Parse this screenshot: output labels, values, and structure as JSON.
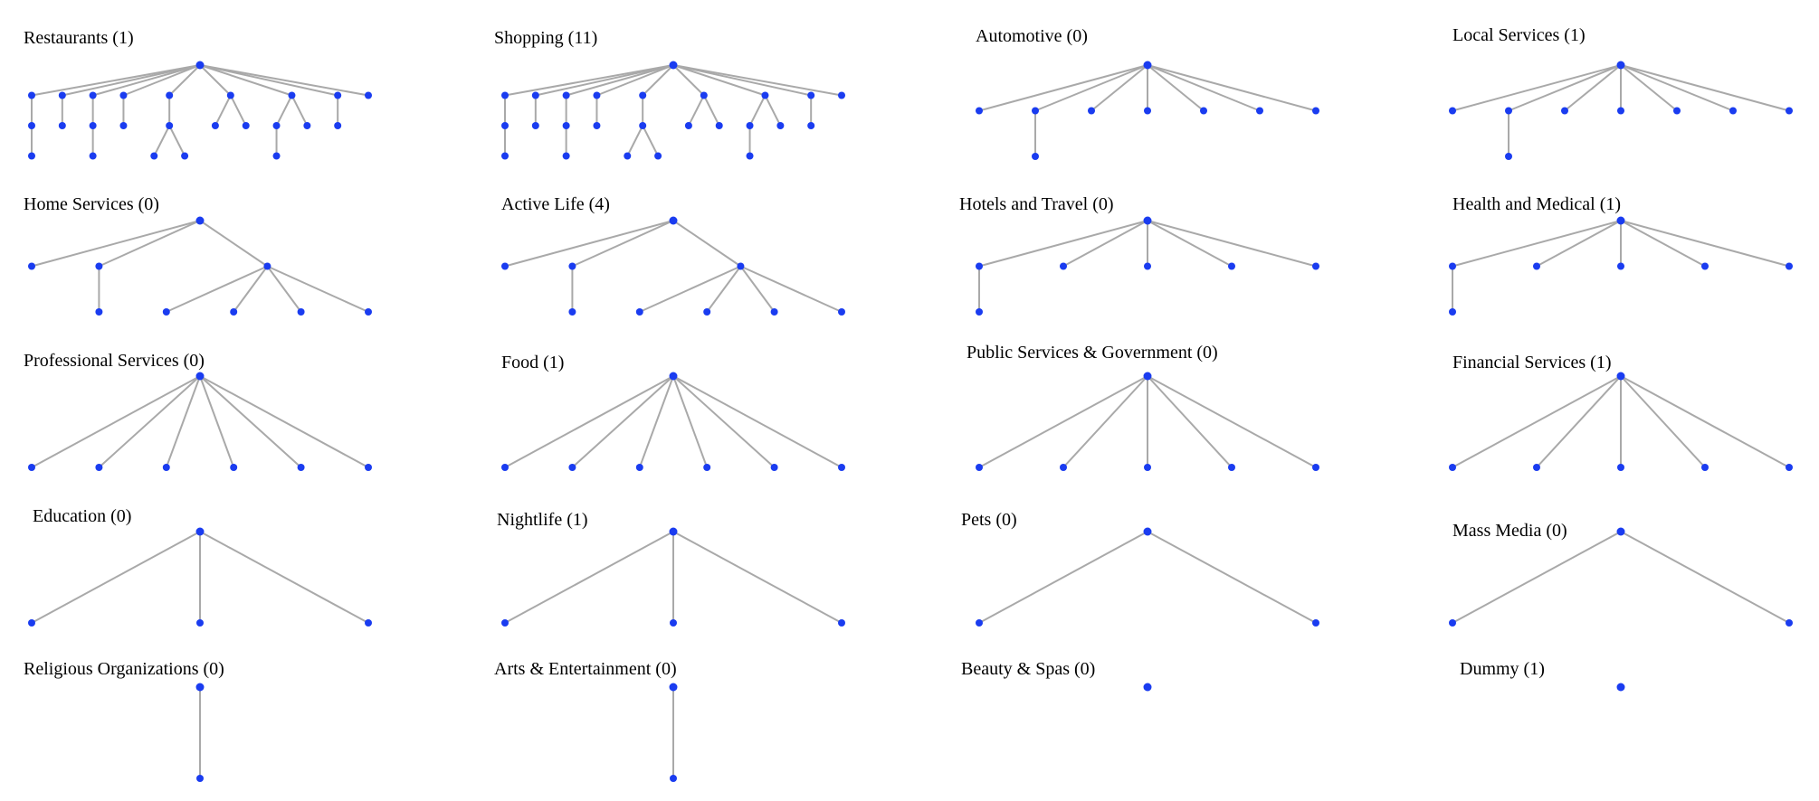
{
  "node_color": "#1a3cf0",
  "edge_color": "#a9a9a9",
  "trees": [
    {
      "title": "Restaurants (1)",
      "children": [
        {
          "children": [
            {
              "children": [
                {}
              ]
            }
          ]
        },
        {
          "children": [
            {}
          ]
        },
        {
          "children": [
            {
              "children": [
                {}
              ]
            }
          ]
        },
        {
          "children": [
            {}
          ]
        },
        {
          "children": [
            {
              "children": [
                {},
                {}
              ]
            }
          ]
        },
        {
          "children": [
            {},
            {}
          ]
        },
        {
          "children": [
            {
              "children": [
                {}
              ]
            },
            {}
          ]
        },
        {
          "children": [
            {}
          ]
        },
        {}
      ]
    },
    {
      "title": "Shopping (11)",
      "children": [
        {
          "children": [
            {
              "children": [
                {}
              ]
            }
          ]
        },
        {
          "children": [
            {}
          ]
        },
        {
          "children": [
            {
              "children": [
                {}
              ]
            }
          ]
        },
        {
          "children": [
            {}
          ]
        },
        {
          "children": [
            {
              "children": [
                {},
                {}
              ]
            }
          ]
        },
        {
          "children": [
            {},
            {}
          ]
        },
        {
          "children": [
            {
              "children": [
                {}
              ]
            },
            {}
          ]
        },
        {
          "children": [
            {}
          ]
        },
        {}
      ]
    },
    {
      "title": "Automotive (0)",
      "children": [
        {},
        {
          "children": [
            {}
          ]
        },
        {},
        {},
        {},
        {},
        {}
      ]
    },
    {
      "title": "Local Services (1)",
      "children": [
        {},
        {
          "children": [
            {}
          ]
        },
        {},
        {},
        {},
        {},
        {}
      ]
    },
    {
      "title": "Home Services (0)",
      "children": [
        {},
        {
          "children": [
            {}
          ]
        },
        {
          "children": [
            {},
            {},
            {},
            {}
          ]
        }
      ]
    },
    {
      "title": "Active Life (4)",
      "children": [
        {},
        {
          "children": [
            {}
          ]
        },
        {
          "children": [
            {},
            {},
            {},
            {}
          ]
        }
      ]
    },
    {
      "title": "Hotels and Travel (0)",
      "children": [
        {
          "children": [
            {}
          ]
        },
        {},
        {},
        {},
        {}
      ]
    },
    {
      "title": "Health and Medical (1)",
      "children": [
        {
          "children": [
            {}
          ]
        },
        {},
        {},
        {},
        {}
      ]
    },
    {
      "title": "Professional Services (0)",
      "children": [
        {},
        {},
        {},
        {},
        {},
        {}
      ]
    },
    {
      "title": "Food (1)",
      "children": [
        {},
        {},
        {},
        {},
        {},
        {}
      ]
    },
    {
      "title": "Public Services & Government (0)",
      "children": [
        {},
        {},
        {},
        {},
        {}
      ]
    },
    {
      "title": "Financial Services (1)",
      "children": [
        {},
        {},
        {},
        {},
        {}
      ]
    },
    {
      "title": "Education (0)",
      "children": [
        {},
        {},
        {}
      ]
    },
    {
      "title": "Nightlife (1)",
      "children": [
        {},
        {},
        {}
      ]
    },
    {
      "title": "Pets (0)",
      "children": [
        {},
        {}
      ]
    },
    {
      "title": "Mass Media (0)",
      "children": [
        {},
        {}
      ]
    },
    {
      "title": "Religious Organizations (0)",
      "children": [
        {}
      ]
    },
    {
      "title": "Arts & Entertainment (0)",
      "children": [
        {}
      ]
    },
    {
      "title": "Beauty & Spas (0)",
      "children": []
    },
    {
      "title": "Dummy (1)",
      "children": []
    }
  ]
}
